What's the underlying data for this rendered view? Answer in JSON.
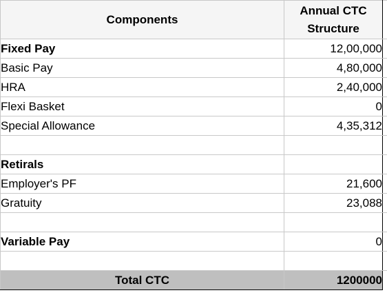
{
  "header": {
    "components": "Components",
    "annual_ctc": "Annual CTC Structure"
  },
  "rows": [
    {
      "label": "Fixed Pay",
      "value": "12,00,000",
      "bold": true
    },
    {
      "label": "Basic Pay",
      "value": "4,80,000",
      "bold": false
    },
    {
      "label": "HRA",
      "value": "2,40,000",
      "bold": false
    },
    {
      "label": "Flexi Basket",
      "value": "0",
      "bold": false
    },
    {
      "label": "Special Allowance",
      "value": "4,35,312",
      "bold": false
    },
    {
      "label": "",
      "value": "",
      "bold": false
    },
    {
      "label": "Retirals",
      "value": "",
      "bold": true
    },
    {
      "label": "Employer's PF",
      "value": "21,600",
      "bold": false
    },
    {
      "label": "Gratuity",
      "value": "23,088",
      "bold": false
    },
    {
      "label": "",
      "value": "",
      "bold": false
    },
    {
      "label": "Variable Pay",
      "value": "0",
      "bold": true
    },
    {
      "label": "",
      "value": "",
      "bold": false
    }
  ],
  "total": {
    "label": "Total CTC",
    "value": "1200000"
  }
}
